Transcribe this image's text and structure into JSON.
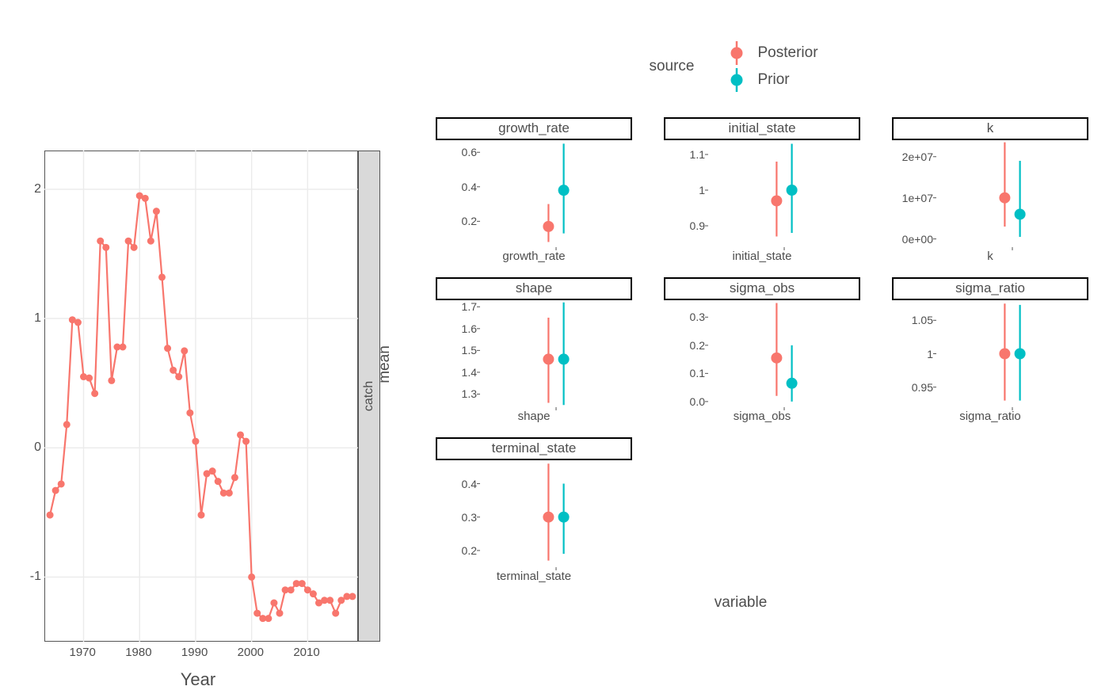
{
  "colors": {
    "posterior": "#f8766d",
    "prior": "#00bfc4",
    "grid": "#ebebeb",
    "grid_minor": "#f4f4f4",
    "panel_bg": "#ffffff",
    "strip_bg": "#d9d9d9",
    "text": "#4d4d4d",
    "border": "#000000"
  },
  "legend": {
    "title": "source",
    "items": [
      {
        "label": "Posterior",
        "color": "#f8766d"
      },
      {
        "label": "Prior",
        "color": "#00bfc4"
      }
    ]
  },
  "timeseries": {
    "type": "line",
    "strip_label": "catch",
    "xlabel": "Year",
    "line_color": "#f8766d",
    "point_color": "#f8766d",
    "point_radius": 4.5,
    "line_width": 2.2,
    "grid_color": "#ebebeb",
    "ylim": [
      -1.5,
      2.3
    ],
    "yticks": [
      -1,
      0,
      1,
      2
    ],
    "xlim": [
      1963,
      2019
    ],
    "xticks": [
      1970,
      1980,
      1990,
      2000,
      2010
    ],
    "years": [
      1964,
      1965,
      1966,
      1967,
      1968,
      1969,
      1970,
      1971,
      1972,
      1973,
      1974,
      1975,
      1976,
      1977,
      1978,
      1979,
      1980,
      1981,
      1982,
      1983,
      1984,
      1985,
      1986,
      1987,
      1988,
      1989,
      1990,
      1991,
      1992,
      1993,
      1994,
      1995,
      1996,
      1997,
      1998,
      1999,
      2000,
      2001,
      2002,
      2003,
      2004,
      2005,
      2006,
      2007,
      2008,
      2009,
      2010,
      2011,
      2012,
      2013,
      2014,
      2015,
      2016,
      2017,
      2018
    ],
    "values": [
      -0.52,
      -0.33,
      -0.28,
      0.18,
      0.99,
      0.97,
      0.55,
      0.54,
      0.42,
      1.6,
      1.55,
      0.52,
      0.78,
      0.78,
      1.6,
      1.55,
      1.95,
      1.93,
      1.6,
      1.83,
      1.32,
      0.77,
      0.6,
      0.55,
      0.75,
      0.27,
      0.05,
      -0.52,
      -0.2,
      -0.18,
      -0.26,
      -0.35,
      -0.35,
      -0.23,
      0.1,
      0.05,
      -1.0,
      -1.28,
      -1.32,
      -1.32,
      -1.2,
      -1.28,
      -1.1,
      -1.1,
      -1.05,
      -1.05,
      -1.1,
      -1.13,
      -1.2,
      -1.18,
      -1.18,
      -1.28,
      -1.18,
      -1.15,
      -1.15
    ]
  },
  "facets": {
    "ylabel": "mean",
    "xlabel": "variable",
    "point_radius": 7,
    "line_width": 2.2,
    "panels": [
      {
        "name": "growth_rate",
        "title": "growth_rate",
        "xlab": "growth_rate",
        "ylim": [
          0.05,
          0.67
        ],
        "yticks": [
          0.2,
          0.4,
          0.6
        ],
        "series": [
          {
            "source": "Posterior",
            "x": 0.45,
            "mean": 0.17,
            "lo": 0.08,
            "hi": 0.3,
            "color": "#f8766d"
          },
          {
            "source": "Prior",
            "x": 0.55,
            "mean": 0.38,
            "lo": 0.13,
            "hi": 0.65,
            "color": "#00bfc4"
          }
        ]
      },
      {
        "name": "initial_state",
        "title": "initial_state",
        "xlab": "initial_state",
        "ylim": [
          0.84,
          1.14
        ],
        "yticks": [
          0.9,
          1.0,
          1.1
        ],
        "series": [
          {
            "source": "Posterior",
            "x": 0.45,
            "mean": 0.97,
            "lo": 0.87,
            "hi": 1.08,
            "color": "#f8766d"
          },
          {
            "source": "Prior",
            "x": 0.55,
            "mean": 1.0,
            "lo": 0.88,
            "hi": 1.13,
            "color": "#00bfc4"
          }
        ]
      },
      {
        "name": "k",
        "title": "k",
        "xlab": "k",
        "ylim": [
          -2000000,
          24000000
        ],
        "yticks": [
          0,
          10000000,
          20000000
        ],
        "ytick_labels": [
          "0e+00",
          "1e+07",
          "2e+07"
        ],
        "series": [
          {
            "source": "Posterior",
            "x": 0.45,
            "mean": 10000000,
            "lo": 3000000,
            "hi": 23500000,
            "color": "#f8766d"
          },
          {
            "source": "Prior",
            "x": 0.55,
            "mean": 6000000,
            "lo": 500000,
            "hi": 19000000,
            "color": "#00bfc4"
          }
        ]
      },
      {
        "name": "shape",
        "title": "shape",
        "xlab": "shape",
        "ylim": [
          1.24,
          1.73
        ],
        "yticks": [
          1.3,
          1.4,
          1.5,
          1.6,
          1.7
        ],
        "series": [
          {
            "source": "Posterior",
            "x": 0.45,
            "mean": 1.46,
            "lo": 1.26,
            "hi": 1.65,
            "color": "#f8766d"
          },
          {
            "source": "Prior",
            "x": 0.55,
            "mean": 1.46,
            "lo": 1.25,
            "hi": 1.72,
            "color": "#00bfc4"
          }
        ]
      },
      {
        "name": "sigma_obs",
        "title": "sigma_obs",
        "xlab": "sigma_obs",
        "ylim": [
          -0.02,
          0.36
        ],
        "yticks": [
          0.0,
          0.1,
          0.2,
          0.3
        ],
        "series": [
          {
            "source": "Posterior",
            "x": 0.45,
            "mean": 0.155,
            "lo": 0.02,
            "hi": 0.35,
            "color": "#f8766d"
          },
          {
            "source": "Prior",
            "x": 0.55,
            "mean": 0.065,
            "lo": 0.0,
            "hi": 0.2,
            "color": "#00bfc4"
          }
        ]
      },
      {
        "name": "sigma_ratio",
        "title": "sigma_ratio",
        "xlab": "sigma_ratio",
        "ylim": [
          0.92,
          1.08
        ],
        "yticks": [
          0.95,
          1.0,
          1.05
        ],
        "series": [
          {
            "source": "Posterior",
            "x": 0.45,
            "mean": 1.0,
            "lo": 0.93,
            "hi": 1.075,
            "color": "#f8766d"
          },
          {
            "source": "Prior",
            "x": 0.55,
            "mean": 1.0,
            "lo": 0.93,
            "hi": 1.073,
            "color": "#00bfc4"
          }
        ]
      },
      {
        "name": "terminal_state",
        "title": "terminal_state",
        "xlab": "terminal_state",
        "ylim": [
          0.15,
          0.47
        ],
        "yticks": [
          0.2,
          0.3,
          0.4
        ],
        "series": [
          {
            "source": "Posterior",
            "x": 0.45,
            "mean": 0.3,
            "lo": 0.17,
            "hi": 0.46,
            "color": "#f8766d"
          },
          {
            "source": "Prior",
            "x": 0.55,
            "mean": 0.3,
            "lo": 0.19,
            "hi": 0.4,
            "color": "#00bfc4"
          }
        ]
      }
    ]
  }
}
